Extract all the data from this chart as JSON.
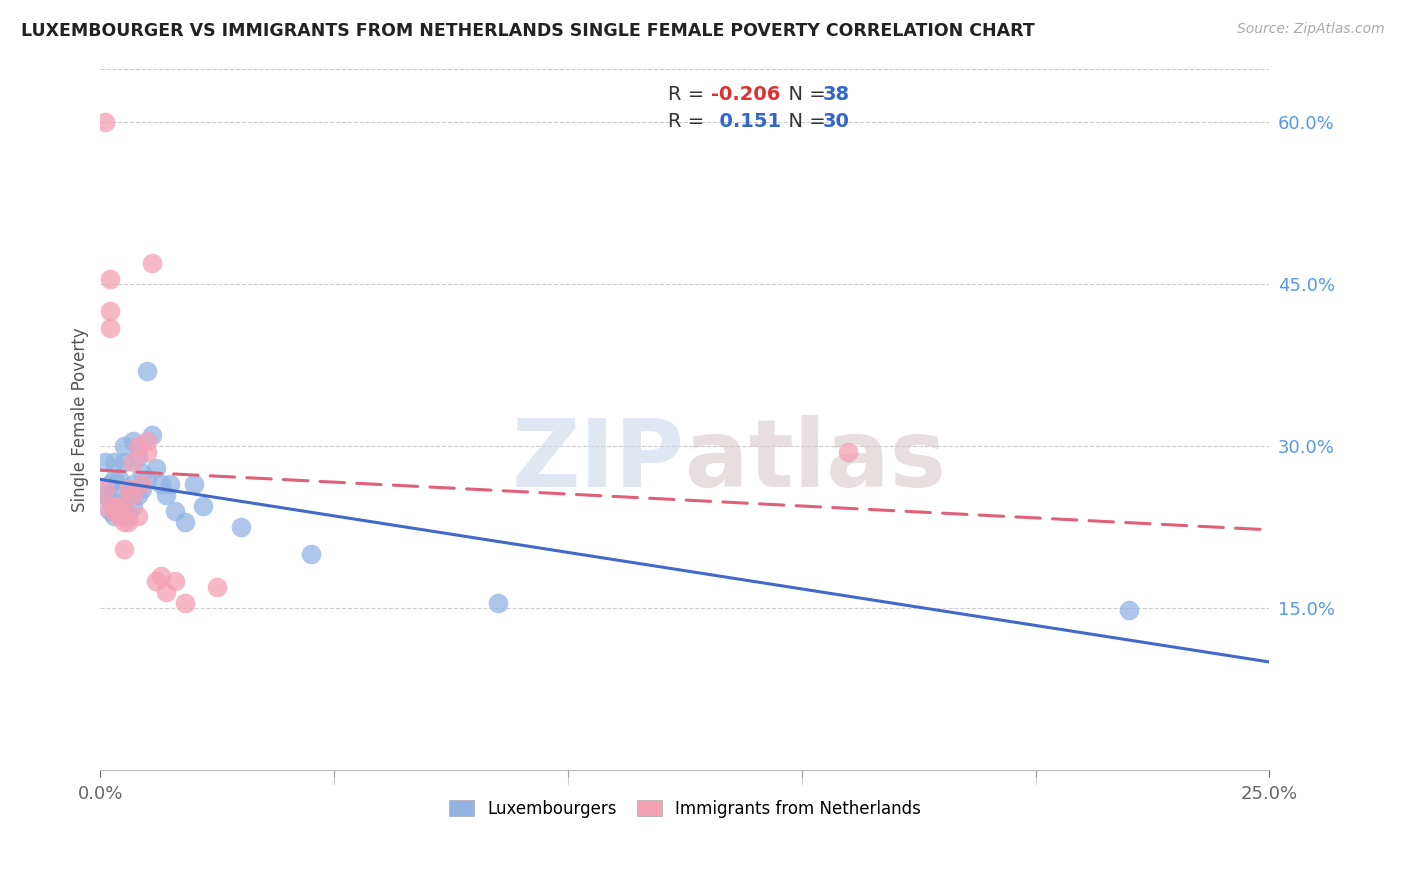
{
  "title": "LUXEMBOURGER VS IMMIGRANTS FROM NETHERLANDS SINGLE FEMALE POVERTY CORRELATION CHART",
  "source": "Source: ZipAtlas.com",
  "ylabel": "Single Female Poverty",
  "ylabel_right_ticks": [
    "15.0%",
    "30.0%",
    "45.0%",
    "60.0%"
  ],
  "ylabel_right_vals": [
    0.15,
    0.3,
    0.45,
    0.6
  ],
  "xlim": [
    0.0,
    0.25
  ],
  "ylim": [
    0.0,
    0.65
  ],
  "R_lux": -0.206,
  "N_lux": 38,
  "R_nl": 0.151,
  "N_nl": 30,
  "lux_color": "#92b4e3",
  "nl_color": "#f4a0b5",
  "lux_line_color": "#4169c8",
  "nl_line_color": "#e0607a",
  "watermark_zip": "ZIP",
  "watermark_atlas": "atlas",
  "lux_x": [
    0.001,
    0.001,
    0.002,
    0.002,
    0.002,
    0.003,
    0.003,
    0.003,
    0.003,
    0.004,
    0.004,
    0.005,
    0.005,
    0.005,
    0.006,
    0.006,
    0.007,
    0.007,
    0.007,
    0.008,
    0.008,
    0.009,
    0.009,
    0.01,
    0.01,
    0.011,
    0.012,
    0.013,
    0.014,
    0.015,
    0.016,
    0.018,
    0.02,
    0.022,
    0.03,
    0.045,
    0.085,
    0.22
  ],
  "lux_y": [
    0.255,
    0.285,
    0.24,
    0.25,
    0.265,
    0.235,
    0.245,
    0.27,
    0.285,
    0.26,
    0.27,
    0.24,
    0.285,
    0.3,
    0.235,
    0.255,
    0.245,
    0.265,
    0.305,
    0.255,
    0.29,
    0.26,
    0.275,
    0.27,
    0.37,
    0.31,
    0.28,
    0.265,
    0.255,
    0.265,
    0.24,
    0.23,
    0.265,
    0.245,
    0.225,
    0.2,
    0.155,
    0.148
  ],
  "nl_x": [
    0.001,
    0.001,
    0.001,
    0.002,
    0.002,
    0.002,
    0.003,
    0.003,
    0.004,
    0.004,
    0.005,
    0.005,
    0.005,
    0.006,
    0.006,
    0.007,
    0.007,
    0.008,
    0.008,
    0.009,
    0.01,
    0.01,
    0.011,
    0.012,
    0.013,
    0.014,
    0.016,
    0.018,
    0.025,
    0.16
  ],
  "nl_y": [
    0.245,
    0.26,
    0.6,
    0.41,
    0.425,
    0.455,
    0.24,
    0.245,
    0.235,
    0.245,
    0.24,
    0.23,
    0.205,
    0.23,
    0.26,
    0.255,
    0.285,
    0.235,
    0.3,
    0.265,
    0.295,
    0.305,
    0.47,
    0.175,
    0.18,
    0.165,
    0.175,
    0.155,
    0.17,
    0.295
  ]
}
